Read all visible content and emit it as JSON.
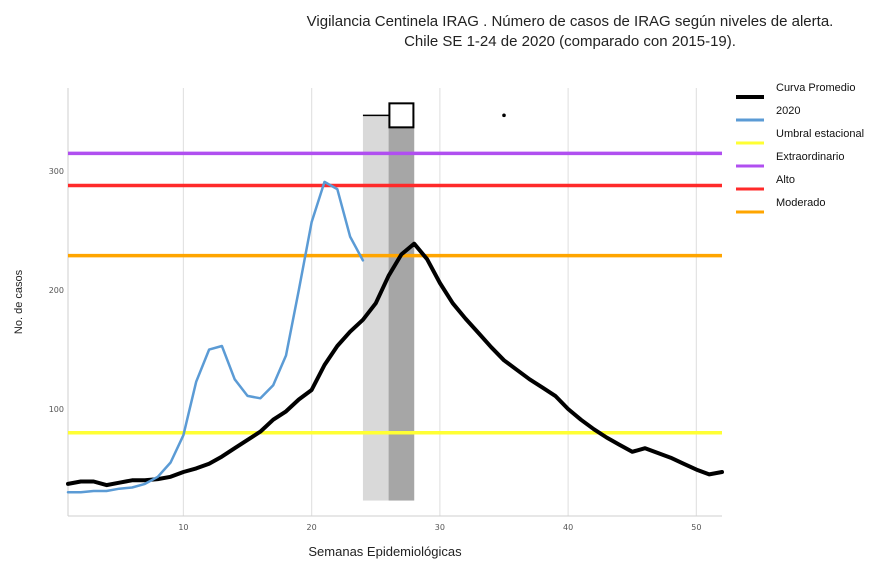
{
  "title_line1": "Vigilancia Centinela IRAG . Número de casos de IRAG según niveles de alerta.",
  "title_line2": "Chile SE 1-24 de 2020  (comparado con 2015-19).",
  "chart_data": {
    "type": "line",
    "xlabel": "Semanas Epidemiológicas",
    "ylabel": "No. de casos",
    "xlim": [
      1,
      52
    ],
    "ylim": [
      10,
      370
    ],
    "x_ticks": [
      10,
      20,
      30,
      40,
      50
    ],
    "y_ticks": [
      100,
      200,
      300
    ],
    "grid": "vertical",
    "legend_position": "right",
    "series": [
      {
        "name": "Curva Promedio",
        "color": "#000000",
        "points": [
          [
            1,
            37
          ],
          [
            2,
            39
          ],
          [
            3,
            39
          ],
          [
            4,
            36
          ],
          [
            5,
            38
          ],
          [
            6,
            40
          ],
          [
            7,
            40
          ],
          [
            8,
            41
          ],
          [
            9,
            43
          ],
          [
            10,
            47
          ],
          [
            11,
            50
          ],
          [
            12,
            54
          ],
          [
            13,
            60
          ],
          [
            14,
            67
          ],
          [
            15,
            74
          ],
          [
            16,
            81
          ],
          [
            17,
            91
          ],
          [
            18,
            98
          ],
          [
            19,
            108
          ],
          [
            20,
            116
          ],
          [
            21,
            137
          ],
          [
            22,
            153
          ],
          [
            23,
            165
          ],
          [
            24,
            175
          ],
          [
            25,
            189
          ],
          [
            26,
            212
          ],
          [
            27,
            230
          ],
          [
            28,
            239
          ],
          [
            29,
            226
          ],
          [
            30,
            206
          ],
          [
            31,
            189
          ],
          [
            32,
            176
          ],
          [
            33,
            164
          ],
          [
            34,
            152
          ],
          [
            35,
            141
          ],
          [
            36,
            133
          ],
          [
            37,
            125
          ],
          [
            38,
            118
          ],
          [
            39,
            111
          ],
          [
            40,
            100
          ],
          [
            41,
            91
          ],
          [
            42,
            83
          ],
          [
            43,
            76
          ],
          [
            44,
            70
          ],
          [
            45,
            64
          ],
          [
            46,
            67
          ],
          [
            47,
            63
          ],
          [
            48,
            59
          ],
          [
            49,
            54
          ],
          [
            50,
            49
          ],
          [
            51,
            45
          ],
          [
            52,
            47
          ]
        ]
      },
      {
        "name": "2020",
        "color": "#5b9bd5",
        "points": [
          [
            1,
            30
          ],
          [
            2,
            30
          ],
          [
            3,
            31
          ],
          [
            4,
            31
          ],
          [
            5,
            33
          ],
          [
            6,
            34
          ],
          [
            7,
            37
          ],
          [
            8,
            43
          ],
          [
            9,
            55
          ],
          [
            10,
            78
          ],
          [
            11,
            123
          ],
          [
            12,
            150
          ],
          [
            13,
            153
          ],
          [
            14,
            125
          ],
          [
            15,
            111
          ],
          [
            16,
            109
          ],
          [
            17,
            120
          ],
          [
            18,
            145
          ],
          [
            19,
            200
          ],
          [
            20,
            257
          ],
          [
            21,
            291
          ],
          [
            22,
            285
          ],
          [
            23,
            245
          ],
          [
            24,
            225
          ]
        ]
      }
    ],
    "thresholds": [
      {
        "name": "Umbral estacional",
        "value": 80,
        "color": "#ffff33"
      },
      {
        "name": "Extraordinario",
        "value": 315,
        "color": "#b04ff0"
      },
      {
        "name": "Alto",
        "value": 288,
        "color": "#ff2a2a"
      },
      {
        "name": "Moderado",
        "value": 229,
        "color": "#ffa500"
      }
    ],
    "shaded_bands": [
      {
        "x_from": 24,
        "x_to": 26,
        "y_from": 23,
        "y_to": 347,
        "color": "#d9d9d9"
      },
      {
        "x_from": 26,
        "x_to": 28,
        "y_from": 23,
        "y_to": 347,
        "color": "#a6a6a6"
      }
    ],
    "annotations": {
      "boxplot_marker": {
        "x_whisker_start": 24,
        "x_box_center": 27,
        "y": 347
      },
      "outlier_point": {
        "x": 35,
        "y": 347
      }
    },
    "legend": [
      {
        "label": "Curva Promedio",
        "color": "#000000",
        "thick": true
      },
      {
        "label": "2020",
        "color": "#5b9bd5"
      },
      {
        "label": "Umbral estacional",
        "color": "#ffff33"
      },
      {
        "label": "Extraordinario",
        "color": "#b04ff0"
      },
      {
        "label": "Alto",
        "color": "#ff2a2a"
      },
      {
        "label": "Moderado",
        "color": "#ffa500"
      }
    ]
  }
}
